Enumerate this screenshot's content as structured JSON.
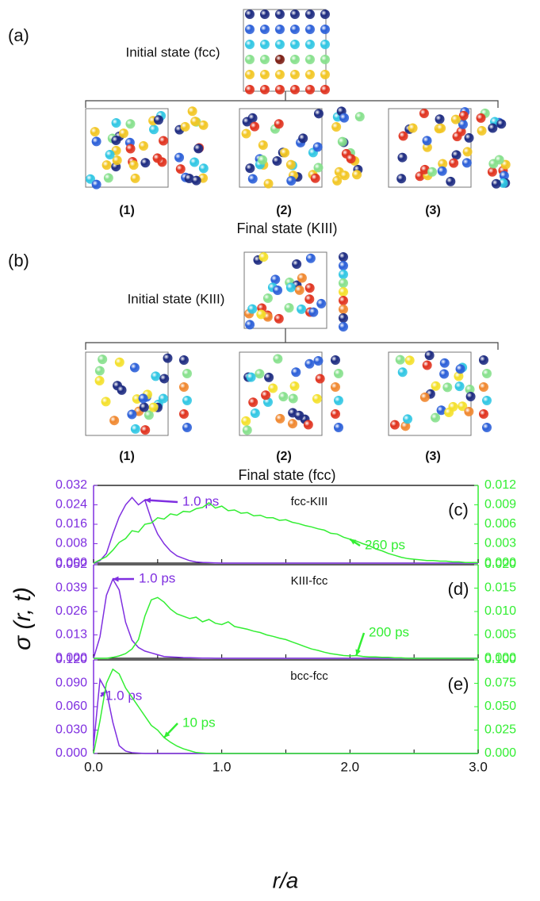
{
  "diagram_a": {
    "label": "(a)",
    "initial": "Initial state (fcc)",
    "final": "Final state (KIII)",
    "panels": [
      "(1)",
      "(2)",
      "(3)"
    ]
  },
  "diagram_b": {
    "label": "(b)",
    "initial": "Initial state (KIII)",
    "final": "Final state (fcc)",
    "panels": [
      "(1)",
      "(2)",
      "(3)"
    ]
  },
  "chart_data": [
    {
      "type": "line",
      "title": "fcc-KIII",
      "panel_label": "(c)",
      "x": [
        0,
        0.05,
        0.1,
        0.15,
        0.2,
        0.25,
        0.3,
        0.35,
        0.4,
        0.45,
        0.5,
        0.55,
        0.6,
        0.65,
        0.7,
        0.75,
        0.8,
        0.85,
        0.9,
        0.95,
        1.0,
        1.05,
        1.1,
        1.15,
        1.2,
        1.25,
        1.3,
        1.35,
        1.4,
        1.45,
        1.5,
        1.55,
        1.6,
        1.65,
        1.7,
        1.75,
        1.8,
        1.85,
        1.9,
        1.95,
        2.0,
        2.05,
        2.1,
        2.15,
        2.2,
        2.25,
        2.3,
        2.35,
        2.4,
        2.45,
        2.5,
        2.55,
        2.6,
        2.65,
        2.7,
        2.75,
        2.8,
        2.85,
        2.9,
        2.95,
        3.0
      ],
      "xlim": [
        0,
        3
      ],
      "xticks": [
        0,
        0.5,
        1,
        1.5,
        2,
        2.5,
        3
      ],
      "ylim": [
        0,
        0.032
      ],
      "yticks": [
        {
          "value": 0,
          "label": "0.000"
        },
        0.008,
        0.016,
        0.024,
        0.032
      ],
      "y2lim": [
        0,
        0.012
      ],
      "y2ticks": [
        {
          "value": 0,
          "label": "0.000"
        },
        0.003,
        0.006,
        0.009,
        0.012
      ],
      "series": [
        {
          "name": "1.0 ps",
          "color": "#7f2fe0",
          "values": [
            0,
            0.001,
            0.004,
            0.012,
            0.019,
            0.024,
            0.027,
            0.024,
            0.026,
            0.018,
            0.012,
            0.008,
            0.005,
            0.003,
            0.002,
            0.001,
            0.0005,
            0.0003,
            0.0002,
            0.0001,
            0,
            0,
            0,
            0,
            0,
            0,
            0,
            0,
            0,
            0,
            0,
            0,
            0,
            0,
            0,
            0,
            0,
            0,
            0,
            0,
            0,
            0,
            0,
            0,
            0,
            0,
            0,
            0,
            0,
            0,
            0,
            0,
            0,
            0,
            0,
            0,
            0,
            0,
            0,
            0,
            0
          ]
        },
        {
          "name": "260 ps",
          "color": "#33ee33",
          "axis": "y2",
          "values": [
            0,
            0.0005,
            0.001,
            0.002,
            0.0032,
            0.0038,
            0.005,
            0.0048,
            0.006,
            0.0062,
            0.007,
            0.0068,
            0.0076,
            0.0074,
            0.008,
            0.0079,
            0.0084,
            0.0086,
            0.0093,
            0.0085,
            0.0088,
            0.0081,
            0.0082,
            0.0077,
            0.0078,
            0.0073,
            0.0074,
            0.007,
            0.007,
            0.0066,
            0.0067,
            0.0063,
            0.0061,
            0.0058,
            0.0056,
            0.0053,
            0.0051,
            0.0046,
            0.0045,
            0.004,
            0.0037,
            0.0034,
            0.003,
            0.0027,
            0.0022,
            0.0019,
            0.0015,
            0.0012,
            0.0009,
            0.0007,
            0.0006,
            0.0005,
            0.0004,
            0.0004,
            0.0003,
            0.0003,
            0.0002,
            0.0002,
            0.0001,
            0.0001,
            0.0001
          ]
        }
      ]
    },
    {
      "type": "line",
      "title": "KIII-fcc",
      "panel_label": "(d)",
      "x": [
        0,
        0.05,
        0.1,
        0.15,
        0.2,
        0.25,
        0.3,
        0.35,
        0.4,
        0.45,
        0.5,
        0.55,
        0.6,
        0.65,
        0.7,
        0.75,
        0.8,
        0.85,
        0.9,
        0.95,
        1.0,
        1.05,
        1.1,
        1.15,
        1.2,
        1.25,
        1.3,
        1.35,
        1.4,
        1.45,
        1.5,
        1.55,
        1.6,
        1.65,
        1.7,
        1.75,
        1.8,
        1.85,
        1.9,
        1.95,
        2.0,
        2.05,
        2.1,
        2.15,
        2.2,
        2.25,
        2.3,
        2.35,
        2.4,
        2.45,
        2.5,
        2.55,
        2.6,
        2.65,
        2.7,
        2.75,
        2.8,
        2.85,
        2.9,
        2.95,
        3.0
      ],
      "xlim": [
        0,
        3
      ],
      "xticks": [
        0,
        0.5,
        1,
        1.5,
        2,
        2.5,
        3
      ],
      "ylim": [
        0,
        0.052
      ],
      "yticks": [
        {
          "value": 0,
          "label": "0.000"
        },
        0.013,
        0.026,
        0.039,
        0.052
      ],
      "y2lim": [
        0,
        0.02
      ],
      "y2ticks": [
        {
          "value": 0,
          "label": "0.000"
        },
        0.005,
        {
          "value": 0.01,
          "label": "0.010"
        },
        0.015,
        {
          "value": 0.02,
          "label": "0.020"
        }
      ],
      "ylabel": "σ (r, t)",
      "series": [
        {
          "name": "1.0 ps",
          "color": "#7f2fe0",
          "values": [
            0,
            0.012,
            0.035,
            0.044,
            0.038,
            0.02,
            0.01,
            0.006,
            0.004,
            0.003,
            0.002,
            0.001,
            0.0008,
            0.0006,
            0.0004,
            0.0003,
            0.0002,
            0.0001,
            0.0001,
            0,
            0,
            0,
            0,
            0,
            0,
            0,
            0,
            0,
            0,
            0,
            0,
            0,
            0,
            0,
            0,
            0,
            0,
            0,
            0,
            0,
            0,
            0,
            0,
            0,
            0,
            0,
            0,
            0,
            0,
            0,
            0,
            0,
            0,
            0,
            0,
            0,
            0,
            0,
            0,
            0,
            0
          ]
        },
        {
          "name": "200 ps",
          "color": "#33ee33",
          "axis": "y2",
          "values": [
            0,
            0,
            0,
            0.0002,
            0.0005,
            0.001,
            0.002,
            0.004,
            0.009,
            0.0125,
            0.013,
            0.012,
            0.0105,
            0.0095,
            0.009,
            0.0085,
            0.0088,
            0.0078,
            0.0083,
            0.0075,
            0.0072,
            0.0078,
            0.0068,
            0.0065,
            0.0062,
            0.0058,
            0.0055,
            0.005,
            0.0047,
            0.0043,
            0.004,
            0.0035,
            0.003,
            0.0025,
            0.002,
            0.0017,
            0.0013,
            0.001,
            0.0008,
            0.0006,
            0.0005,
            0.0006,
            0.0004,
            0.0003,
            0.0003,
            0.0002,
            0.0002,
            0.0001,
            0.0001,
            0,
            0,
            0,
            0,
            0,
            0,
            0,
            0,
            0,
            0,
            0,
            0
          ]
        }
      ]
    },
    {
      "type": "line",
      "title": "bcc-fcc",
      "panel_label": "(e)",
      "x": [
        0,
        0.05,
        0.1,
        0.15,
        0.2,
        0.25,
        0.3,
        0.35,
        0.4,
        0.45,
        0.5,
        0.55,
        0.6,
        0.65,
        0.7,
        0.75,
        0.8,
        0.85,
        0.9,
        0.95,
        1.0,
        1.05,
        1.1,
        1.15,
        1.2,
        1.25,
        1.3,
        1.35,
        1.4,
        1.45,
        1.5,
        1.55,
        1.6,
        1.65,
        1.7,
        1.75,
        1.8,
        1.85,
        1.9,
        1.95,
        2.0,
        2.05,
        2.1,
        2.15,
        2.2,
        2.25,
        2.3,
        2.35,
        2.4,
        2.45,
        2.5,
        2.55,
        2.6,
        2.65,
        2.7,
        2.75,
        2.8,
        2.85,
        2.9,
        2.95,
        3.0
      ],
      "xlim": [
        0,
        3
      ],
      "xticks": [
        {
          "value": 0,
          "label": "0.0"
        },
        0.5,
        {
          "value": 1,
          "label": "1.0"
        },
        1.5,
        {
          "value": 2,
          "label": "2.0"
        },
        2.5,
        {
          "value": 3,
          "label": "3.0"
        }
      ],
      "ylim": [
        0,
        0.12
      ],
      "yticks": [
        {
          "value": 0,
          "label": "0.000"
        },
        {
          "value": 0.03,
          "label": "0.030"
        },
        {
          "value": 0.06,
          "label": "0.060"
        },
        {
          "value": 0.09,
          "label": "0.090"
        },
        {
          "value": 0.12,
          "label": "0.120"
        }
      ],
      "y2lim": [
        0,
        0.1
      ],
      "y2ticks": [
        {
          "value": 0,
          "label": "0.000"
        },
        0.025,
        {
          "value": 0.05,
          "label": "0.050"
        },
        0.075,
        {
          "value": 0.1,
          "label": "0.100"
        }
      ],
      "xlabel": "r/a",
      "series": [
        {
          "name": "1.0 ps",
          "color": "#7f2fe0",
          "values": [
            0.01,
            0.095,
            0.08,
            0.04,
            0.01,
            0.003,
            0.001,
            0.0005,
            0,
            0,
            0,
            0,
            0,
            0,
            0,
            0,
            0,
            0,
            0,
            0,
            0,
            0,
            0,
            0,
            0,
            0,
            0,
            0,
            0,
            0,
            0,
            0,
            0,
            0,
            0,
            0,
            0,
            0,
            0,
            0,
            0,
            0,
            0,
            0,
            0,
            0,
            0,
            0,
            0,
            0,
            0,
            0,
            0,
            0,
            0,
            0,
            0,
            0,
            0,
            0,
            0
          ]
        },
        {
          "name": "10 ps",
          "color": "#33ee33",
          "axis": "y2",
          "values": [
            0,
            0.035,
            0.075,
            0.09,
            0.085,
            0.07,
            0.06,
            0.05,
            0.04,
            0.03,
            0.025,
            0.017,
            0.012,
            0.008,
            0.005,
            0.003,
            0.001,
            0.0005,
            0,
            0,
            0,
            0,
            0,
            0,
            0,
            0,
            0,
            0,
            0,
            0,
            0,
            0,
            0,
            0,
            0,
            0,
            0,
            0,
            0,
            0,
            0,
            0,
            0,
            0,
            0,
            0,
            0,
            0,
            0,
            0,
            0,
            0,
            0,
            0,
            0,
            0,
            0,
            0,
            0,
            0,
            0
          ]
        }
      ]
    }
  ]
}
